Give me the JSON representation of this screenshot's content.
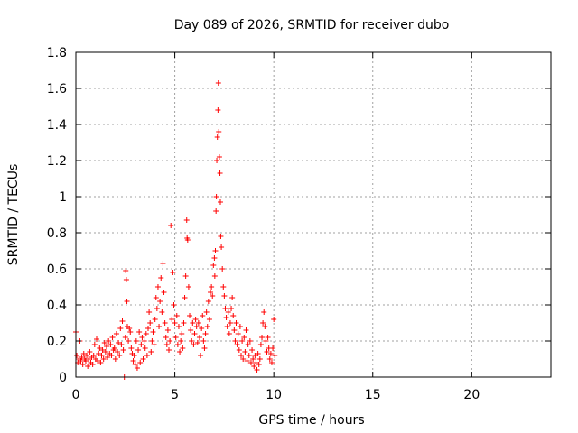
{
  "chart_data": {
    "type": "scatter",
    "title": "Day 089 of 2026, SRMTID for receiver dubo",
    "xlabel": "GPS time / hours",
    "ylabel": "SRMTID / TECUs",
    "xlim": [
      0,
      24
    ],
    "ylim": [
      0,
      1.8
    ],
    "xticks": [
      0,
      5,
      10,
      15,
      20
    ],
    "xtick_labels": [
      "0",
      "5",
      "10",
      "15",
      "20"
    ],
    "yticks": [
      0,
      0.2,
      0.4,
      0.6,
      0.8,
      1.0,
      1.2,
      1.4,
      1.6,
      1.8
    ],
    "ytick_labels": [
      "0",
      "0.2",
      "0.4",
      "0.6",
      "0.8",
      "1",
      "1.2",
      "1.4",
      "1.6",
      "1.8"
    ],
    "grid": true,
    "marker": "+",
    "series": [
      {
        "name": "SRMTID",
        "color": "#ff0000",
        "points": [
          [
            0.0,
            0.25
          ],
          [
            0.05,
            0.12
          ],
          [
            0.1,
            0.08
          ],
          [
            0.15,
            0.1
          ],
          [
            0.2,
            0.2
          ],
          [
            0.25,
            0.09
          ],
          [
            0.3,
            0.11
          ],
          [
            0.35,
            0.07
          ],
          [
            0.4,
            0.13
          ],
          [
            0.45,
            0.1
          ],
          [
            0.5,
            0.09
          ],
          [
            0.55,
            0.12
          ],
          [
            0.6,
            0.06
          ],
          [
            0.65,
            0.1
          ],
          [
            0.7,
            0.14
          ],
          [
            0.75,
            0.08
          ],
          [
            0.8,
            0.11
          ],
          [
            0.85,
            0.07
          ],
          [
            0.9,
            0.12
          ],
          [
            0.95,
            0.18
          ],
          [
            1.0,
            0.1
          ],
          [
            1.05,
            0.21
          ],
          [
            1.1,
            0.09
          ],
          [
            1.15,
            0.13
          ],
          [
            1.2,
            0.16
          ],
          [
            1.25,
            0.08
          ],
          [
            1.3,
            0.12
          ],
          [
            1.35,
            0.15
          ],
          [
            1.4,
            0.1
          ],
          [
            1.45,
            0.19
          ],
          [
            1.5,
            0.14
          ],
          [
            1.55,
            0.17
          ],
          [
            1.6,
            0.11
          ],
          [
            1.65,
            0.2
          ],
          [
            1.7,
            0.13
          ],
          [
            1.75,
            0.18
          ],
          [
            1.8,
            0.12
          ],
          [
            1.85,
            0.22
          ],
          [
            1.9,
            0.15
          ],
          [
            1.95,
            0.16
          ],
          [
            2.0,
            0.1
          ],
          [
            2.05,
            0.24
          ],
          [
            2.1,
            0.14
          ],
          [
            2.15,
            0.19
          ],
          [
            2.2,
            0.12
          ],
          [
            2.25,
            0.27
          ],
          [
            2.3,
            0.18
          ],
          [
            2.35,
            0.31
          ],
          [
            2.4,
            0.15
          ],
          [
            2.45,
            0.0
          ],
          [
            2.5,
            0.22
          ],
          [
            2.52,
            0.59
          ],
          [
            2.55,
            0.54
          ],
          [
            2.58,
            0.42
          ],
          [
            2.6,
            0.28
          ],
          [
            2.65,
            0.2
          ],
          [
            2.7,
            0.27
          ],
          [
            2.75,
            0.25
          ],
          [
            2.8,
            0.16
          ],
          [
            2.85,
            0.13
          ],
          [
            2.9,
            0.09
          ],
          [
            2.95,
            0.12
          ],
          [
            3.0,
            0.07
          ],
          [
            3.05,
            0.2
          ],
          [
            3.1,
            0.05
          ],
          [
            3.15,
            0.15
          ],
          [
            3.2,
            0.25
          ],
          [
            3.25,
            0.08
          ],
          [
            3.3,
            0.18
          ],
          [
            3.35,
            0.22
          ],
          [
            3.4,
            0.1
          ],
          [
            3.45,
            0.2
          ],
          [
            3.5,
            0.16
          ],
          [
            3.55,
            0.24
          ],
          [
            3.6,
            0.12
          ],
          [
            3.65,
            0.27
          ],
          [
            3.7,
            0.36
          ],
          [
            3.75,
            0.3
          ],
          [
            3.8,
            0.14
          ],
          [
            3.85,
            0.2
          ],
          [
            3.9,
            0.25
          ],
          [
            3.95,
            0.18
          ],
          [
            4.0,
            0.32
          ],
          [
            4.05,
            0.44
          ],
          [
            4.1,
            0.38
          ],
          [
            4.15,
            0.5
          ],
          [
            4.2,
            0.28
          ],
          [
            4.25,
            0.42
          ],
          [
            4.3,
            0.55
          ],
          [
            4.35,
            0.36
          ],
          [
            4.4,
            0.63
          ],
          [
            4.45,
            0.47
          ],
          [
            4.5,
            0.3
          ],
          [
            4.55,
            0.22
          ],
          [
            4.6,
            0.18
          ],
          [
            4.65,
            0.26
          ],
          [
            4.7,
            0.15
          ],
          [
            4.75,
            0.2
          ],
          [
            4.8,
            0.84
          ],
          [
            4.85,
            0.32
          ],
          [
            4.9,
            0.58
          ],
          [
            4.95,
            0.4
          ],
          [
            5.0,
            0.3
          ],
          [
            5.05,
            0.22
          ],
          [
            5.1,
            0.34
          ],
          [
            5.15,
            0.18
          ],
          [
            5.2,
            0.28
          ],
          [
            5.25,
            0.14
          ],
          [
            5.3,
            0.2
          ],
          [
            5.35,
            0.24
          ],
          [
            5.4,
            0.16
          ],
          [
            5.45,
            0.3
          ],
          [
            5.5,
            0.44
          ],
          [
            5.55,
            0.56
          ],
          [
            5.6,
            0.87
          ],
          [
            5.62,
            0.77
          ],
          [
            5.65,
            0.76
          ],
          [
            5.7,
            0.5
          ],
          [
            5.75,
            0.34
          ],
          [
            5.8,
            0.26
          ],
          [
            5.85,
            0.2
          ],
          [
            5.9,
            0.3
          ],
          [
            5.95,
            0.18
          ],
          [
            6.0,
            0.24
          ],
          [
            6.05,
            0.32
          ],
          [
            6.1,
            0.28
          ],
          [
            6.15,
            0.19
          ],
          [
            6.2,
            0.3
          ],
          [
            6.25,
            0.22
          ],
          [
            6.3,
            0.12
          ],
          [
            6.35,
            0.27
          ],
          [
            6.4,
            0.34
          ],
          [
            6.45,
            0.2
          ],
          [
            6.5,
            0.16
          ],
          [
            6.55,
            0.24
          ],
          [
            6.6,
            0.36
          ],
          [
            6.65,
            0.28
          ],
          [
            6.7,
            0.42
          ],
          [
            6.75,
            0.32
          ],
          [
            6.8,
            0.47
          ],
          [
            6.85,
            0.5
          ],
          [
            6.9,
            0.45
          ],
          [
            6.95,
            0.62
          ],
          [
            7.0,
            0.66
          ],
          [
            7.02,
            0.56
          ],
          [
            7.05,
            0.7
          ],
          [
            7.08,
            0.92
          ],
          [
            7.1,
            1.0
          ],
          [
            7.12,
            1.2
          ],
          [
            7.15,
            1.33
          ],
          [
            7.18,
            1.48
          ],
          [
            7.2,
            1.63
          ],
          [
            7.22,
            1.36
          ],
          [
            7.25,
            1.22
          ],
          [
            7.28,
            1.13
          ],
          [
            7.3,
            0.97
          ],
          [
            7.32,
            0.78
          ],
          [
            7.35,
            0.72
          ],
          [
            7.4,
            0.6
          ],
          [
            7.45,
            0.5
          ],
          [
            7.5,
            0.45
          ],
          [
            7.55,
            0.38
          ],
          [
            7.6,
            0.33
          ],
          [
            7.65,
            0.28
          ],
          [
            7.7,
            0.36
          ],
          [
            7.75,
            0.24
          ],
          [
            7.8,
            0.3
          ],
          [
            7.85,
            0.38
          ],
          [
            7.9,
            0.44
          ],
          [
            7.95,
            0.34
          ],
          [
            8.0,
            0.26
          ],
          [
            8.05,
            0.2
          ],
          [
            8.1,
            0.3
          ],
          [
            8.15,
            0.18
          ],
          [
            8.2,
            0.24
          ],
          [
            8.25,
            0.15
          ],
          [
            8.3,
            0.28
          ],
          [
            8.35,
            0.12
          ],
          [
            8.4,
            0.2
          ],
          [
            8.45,
            0.1
          ],
          [
            8.5,
            0.22
          ],
          [
            8.55,
            0.14
          ],
          [
            8.6,
            0.26
          ],
          [
            8.65,
            0.09
          ],
          [
            8.7,
            0.18
          ],
          [
            8.75,
            0.12
          ],
          [
            8.8,
            0.2
          ],
          [
            8.85,
            0.08
          ],
          [
            8.9,
            0.15
          ],
          [
            8.95,
            0.1
          ],
          [
            9.0,
            0.06
          ],
          [
            9.05,
            0.12
          ],
          [
            9.1,
            0.08
          ],
          [
            9.15,
            0.04
          ],
          [
            9.2,
            0.13
          ],
          [
            9.25,
            0.07
          ],
          [
            9.3,
            0.1
          ],
          [
            9.35,
            0.18
          ],
          [
            9.4,
            0.22
          ],
          [
            9.45,
            0.3
          ],
          [
            9.5,
            0.36
          ],
          [
            9.55,
            0.28
          ],
          [
            9.6,
            0.2
          ],
          [
            9.65,
            0.14
          ],
          [
            9.7,
            0.22
          ],
          [
            9.75,
            0.16
          ],
          [
            9.8,
            0.1
          ],
          [
            9.85,
            0.13
          ],
          [
            9.9,
            0.08
          ],
          [
            9.95,
            0.16
          ],
          [
            10.0,
            0.32
          ],
          [
            10.05,
            0.12
          ]
        ]
      }
    ]
  }
}
